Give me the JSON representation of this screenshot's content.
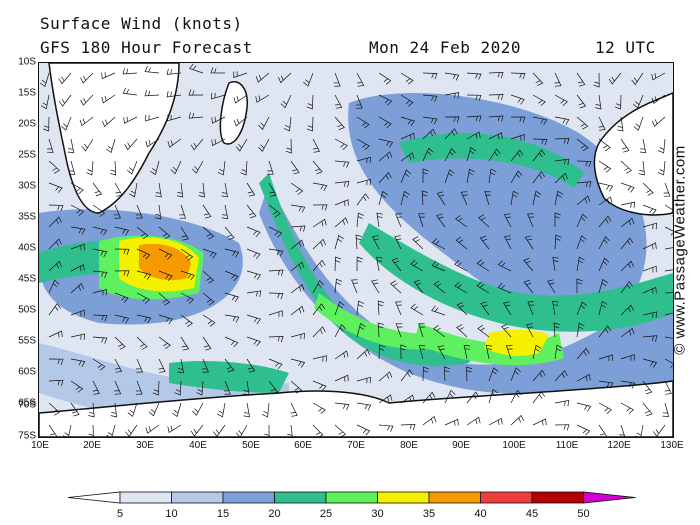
{
  "header": {
    "title": "Surface Wind (knots)",
    "forecast": "GFS 180 Hour Forecast",
    "date": "Mon 24 Feb 2020",
    "time": "12 UTC"
  },
  "axes": {
    "lat_labels": [
      "10S",
      "15S",
      "20S",
      "25S",
      "30S",
      "35S",
      "40S",
      "45S",
      "50S",
      "55S",
      "60S",
      "65S",
      "70S",
      "75S"
    ],
    "lon_labels": [
      "10E",
      "20E",
      "30E",
      "40E",
      "50E",
      "60E",
      "70E",
      "80E",
      "90E",
      "100E",
      "110E",
      "120E",
      "130E"
    ]
  },
  "credit": "© www.PassageWeather.com",
  "colorbar": {
    "labels": [
      "5",
      "10",
      "15",
      "20",
      "25",
      "30",
      "35",
      "40",
      "45",
      "50"
    ],
    "colors": [
      "#ffffff",
      "#dfe6f2",
      "#b4c8e8",
      "#7c9fd8",
      "#2fbf8f",
      "#5ef05e",
      "#f5f000",
      "#f59a00",
      "#f03c3c",
      "#b40000",
      "#d200d2"
    ]
  },
  "colors": {
    "land": "#ffffff",
    "calm": "#dfe6f2",
    "light": "#b4c8e8",
    "moderate": "#7c9fd8",
    "fresh": "#2fbf8f",
    "strong": "#5ef05e",
    "gale": "#f5f000",
    "storm": "#f59a00"
  }
}
